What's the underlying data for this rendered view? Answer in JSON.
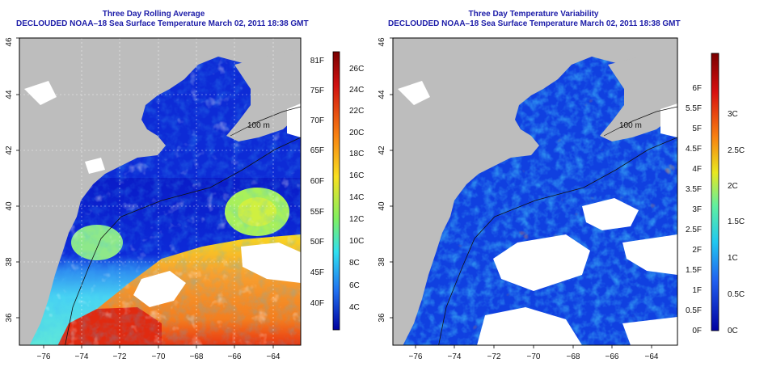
{
  "left_panel": {
    "title": "Three Day Rolling Average",
    "subtitle": "DECLOUDED NOAA–18 Sea Surface Temperature March 02, 2011 18:38 GMT",
    "y_ticks": [
      "46",
      "44",
      "42",
      "40",
      "38",
      "36"
    ],
    "x_ticks": [
      "−76",
      "−74",
      "−72",
      "−70",
      "−68",
      "−66",
      "−64"
    ],
    "contour_label": "100 m",
    "colorbar_f": [
      "81F",
      "75F",
      "70F",
      "65F",
      "60F",
      "55F",
      "50F",
      "45F",
      "40F"
    ],
    "colorbar_c": [
      "26C",
      "24C",
      "22C",
      "20C",
      "18C",
      "16C",
      "14C",
      "12C",
      "10C",
      "8C",
      "6C",
      "4C"
    ]
  },
  "right_panel": {
    "title": "Three Day Temperature Variability",
    "subtitle": "DECLOUDED NOAA–18 Sea Surface Temperature March 02, 2011 18:38 GMT",
    "y_ticks": [
      "46",
      "44",
      "42",
      "40",
      "38",
      "36"
    ],
    "x_ticks": [
      "−76",
      "−74",
      "−72",
      "−70",
      "−68",
      "−66",
      "−64"
    ],
    "contour_label": "100 m",
    "colorbar_f": [
      "6F",
      "5.5F",
      "5F",
      "4.5F",
      "4F",
      "3.5F",
      "3F",
      "2.5F",
      "2F",
      "1.5F",
      "1F",
      "0.5F",
      "0F"
    ],
    "colorbar_c": [
      "3C",
      "2.5C",
      "2C",
      "1.5C",
      "1C",
      "0.5C",
      "0C"
    ]
  },
  "colors": {
    "title": "#1c1ca8",
    "land": "#bdbdbd",
    "cloud": "#ffffff"
  }
}
